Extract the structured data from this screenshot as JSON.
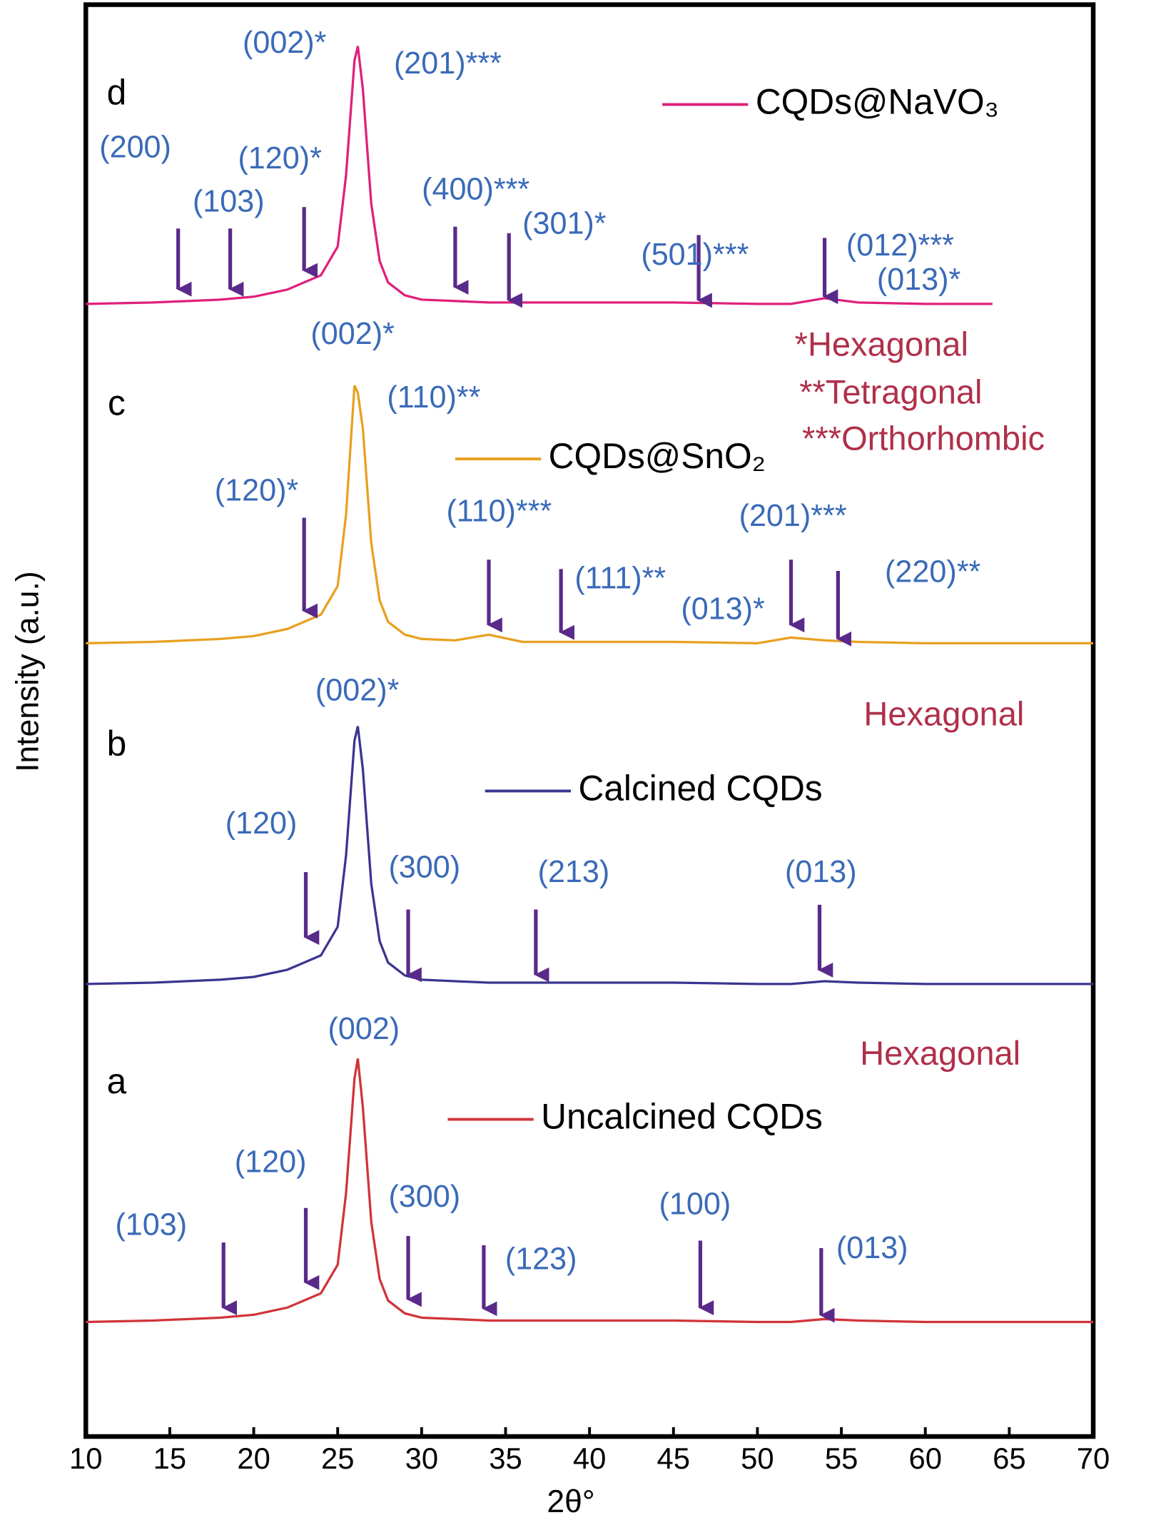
{
  "chart_data": {
    "type": "line",
    "xlabel": "2θ°",
    "ylabel": "Intensity (a.u.)",
    "xlim": [
      10,
      70
    ],
    "xticks": [
      10,
      15,
      20,
      25,
      30,
      35,
      40,
      45,
      50,
      55,
      60,
      65,
      70
    ],
    "ylim": [
      0,
      100
    ],
    "x": [
      10,
      14,
      18,
      20,
      22,
      23,
      24,
      25,
      25.5,
      26,
      26.2,
      26.5,
      27,
      27.5,
      28,
      29,
      30,
      32,
      34,
      36,
      40,
      45,
      50,
      52,
      54,
      56,
      60,
      64,
      70
    ],
    "series": [
      {
        "name": "CQDs@NaVO₃",
        "panel": "d",
        "color": "#e0207a",
        "values": [
          79.1,
          79.2,
          79.4,
          79.6,
          80.1,
          80.6,
          81.1,
          83.1,
          88.1,
          96.1,
          97.1,
          94.1,
          86.1,
          82.1,
          80.6,
          79.7,
          79.4,
          79.3,
          79.2,
          79.2,
          79.2,
          79.2,
          79.1,
          79.1,
          79.5,
          79.2,
          79.1,
          79.1,
          null
        ]
      },
      {
        "name": "CQDs@SnO₂",
        "panel": "c",
        "color": "#e8a020",
        "values": [
          55.4,
          55.5,
          55.7,
          55.9,
          56.4,
          56.9,
          57.4,
          59.4,
          64.4,
          73.4,
          72.9,
          70.4,
          62.4,
          58.4,
          56.9,
          56,
          55.7,
          55.6,
          56,
          55.5,
          55.5,
          55.5,
          55.4,
          55.8,
          55.6,
          55.5,
          55.4,
          55.4,
          55.4
        ]
      },
      {
        "name": "Calcined CQDs",
        "panel": "b",
        "color": "#3a3590",
        "values": [
          31.6,
          31.7,
          31.9,
          32.1,
          32.6,
          33.1,
          33.6,
          35.6,
          40.6,
          48.6,
          49.6,
          46.6,
          38.6,
          34.6,
          33.1,
          32.2,
          31.9,
          31.8,
          31.7,
          31.7,
          31.7,
          31.7,
          31.6,
          31.6,
          31.8,
          31.7,
          31.6,
          31.6,
          31.6
        ]
      },
      {
        "name": "Uncalcined CQDs",
        "panel": "a",
        "color": "#d0343a",
        "values": [
          8,
          8.1,
          8.3,
          8.5,
          9,
          9.5,
          10,
          12,
          17,
          25,
          26.4,
          23,
          15,
          11,
          9.5,
          8.6,
          8.3,
          8.2,
          8.1,
          8.1,
          8.1,
          8.1,
          8,
          8,
          8.2,
          8.1,
          8,
          8,
          8
        ]
      }
    ],
    "phase_labels": [
      "*Hexagonal",
      "**Tetragonal",
      "***Orthorhombic",
      "Hexagonal",
      "Hexagonal"
    ],
    "annotations": [
      {
        "text": "(200)",
        "x": 15.5
      },
      {
        "text": "(103)",
        "x": 18.6
      },
      {
        "text": "(120)*",
        "x": 23
      },
      {
        "text": "(002)*"
      },
      {
        "text": "(201)***"
      },
      {
        "text": "(400)***",
        "x": 32
      },
      {
        "text": "(301)*",
        "x": 35.2
      },
      {
        "text": "(501)***",
        "x": 46.5
      },
      {
        "text": "(012)***",
        "x": 54
      },
      {
        "text": "(013)*"
      },
      {
        "text": "(002)*"
      },
      {
        "text": "(110)**"
      },
      {
        "text": "(120)*",
        "x": 23
      },
      {
        "text": "(110)***",
        "x": 34
      },
      {
        "text": "(111)**",
        "x": 38.3
      },
      {
        "text": "(013)*"
      },
      {
        "text": "(201)***",
        "x": 52
      },
      {
        "text": "(220)**",
        "x": 54.8
      },
      {
        "text": "(002)*"
      },
      {
        "text": "(120)",
        "x": 23.1
      },
      {
        "text": "(300)",
        "x": 29.2
      },
      {
        "text": "(213)",
        "x": 36.8
      },
      {
        "text": "(013)",
        "x": 53.7
      },
      {
        "text": "(002)"
      },
      {
        "text": "(120)",
        "x": 23.1
      },
      {
        "text": "(103)",
        "x": 18.2
      },
      {
        "text": "(300)",
        "x": 29.2
      },
      {
        "text": "(123)",
        "x": 33.7
      },
      {
        "text": "(100)",
        "x": 46.6
      },
      {
        "text": "(013)",
        "x": 53.8
      }
    ]
  }
}
